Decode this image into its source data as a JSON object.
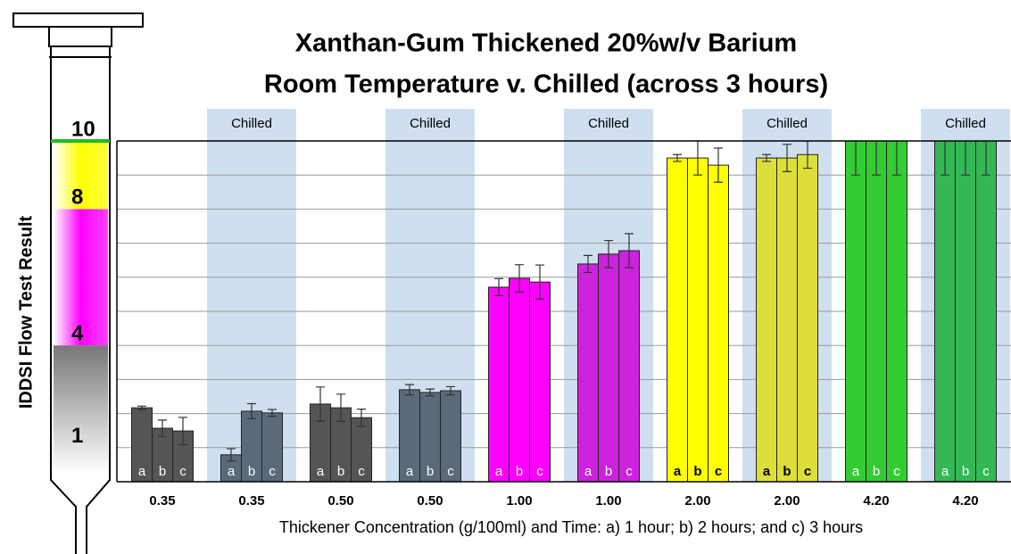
{
  "chart_data": {
    "type": "grouped_error_bar",
    "title": [
      "Xanthan-Gum Thickened 20%w/v Barium",
      "Room Temperature v. Chilled (across 3 hours)"
    ],
    "x_label": "Thickener Concentration (g/100ml) and Time: a) 1 hour; b) 2 hours; and c) 3 hours",
    "y_label": "IDDSI Flow Test Result",
    "ylim": [
      0,
      10
    ],
    "yticks": [
      10,
      8,
      4,
      1
    ],
    "grid_yticks": [
      1,
      2,
      3,
      4,
      5,
      6,
      7,
      8,
      9
    ],
    "grid": true,
    "bar_labels": [
      "a",
      "b",
      "c"
    ],
    "categories": [
      "0.35",
      "0.35",
      "0.50",
      "0.50",
      "1.00",
      "1.00",
      "2.00",
      "2.00",
      "4.20",
      "4.20"
    ],
    "groups": [
      {
        "band": null,
        "color": "#555555",
        "label_color": "#ffffff",
        "values": [
          2.17,
          1.57,
          1.49
        ],
        "errors": [
          0.05,
          0.24,
          0.4
        ]
      },
      {
        "band": "Chilled",
        "color": "#5b6a7a",
        "label_color": "#ffffff",
        "values": [
          0.79,
          2.07,
          2.02
        ],
        "errors": [
          0.18,
          0.22,
          0.1
        ]
      },
      {
        "band": null,
        "color": "#555555",
        "label_color": "#ffffff",
        "values": [
          2.28,
          2.17,
          1.88
        ],
        "errors": [
          0.5,
          0.4,
          0.25
        ]
      },
      {
        "band": "Chilled",
        "color": "#5b6a7a",
        "label_color": "#ffffff",
        "values": [
          2.7,
          2.62,
          2.67
        ],
        "errors": [
          0.15,
          0.1,
          0.12
        ]
      },
      {
        "band": null,
        "color": "#ff00ff",
        "label_color": "#ffffff",
        "values": [
          5.71,
          5.97,
          5.86
        ],
        "errors": [
          0.25,
          0.4,
          0.5
        ]
      },
      {
        "band": "Chilled",
        "color": "#cc22dd",
        "label_color": "#ffffff",
        "values": [
          6.39,
          6.68,
          6.78
        ],
        "errors": [
          0.25,
          0.4,
          0.5
        ]
      },
      {
        "band": null,
        "color": "#ffff00",
        "label_color": "#000000",
        "values": [
          9.5,
          9.5,
          9.29
        ],
        "errors": [
          0.1,
          0.5,
          0.5
        ]
      },
      {
        "band": "Chilled",
        "color": "#dede3a",
        "label_color": "#000000",
        "values": [
          9.5,
          9.5,
          9.6
        ],
        "errors": [
          0.1,
          0.4,
          0.4
        ]
      },
      {
        "band": null,
        "color": "#33cc33",
        "label_color": "#ffffff",
        "values": [
          10,
          10,
          10
        ],
        "errors": [
          1,
          1,
          1
        ]
      },
      {
        "band": "Chilled",
        "color": "#33b855",
        "label_color": "#ffffff",
        "values": [
          10,
          10,
          10
        ],
        "errors": [
          1,
          1,
          1
        ]
      }
    ]
  }
}
